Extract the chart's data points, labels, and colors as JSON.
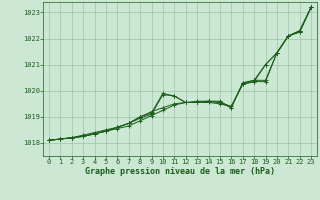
{
  "background_color": "#cce8d4",
  "plot_bg_color": "#cce8d4",
  "grid_color": "#9ec4aa",
  "line_color": "#1a5e1a",
  "title": "Graphe pression niveau de la mer (hPa)",
  "xlim": [
    -0.5,
    23.5
  ],
  "ylim": [
    1017.5,
    1023.4
  ],
  "yticks": [
    1018,
    1019,
    1020,
    1021,
    1022,
    1023
  ],
  "xticks": [
    0,
    1,
    2,
    3,
    4,
    5,
    6,
    7,
    8,
    9,
    10,
    11,
    12,
    13,
    14,
    15,
    16,
    17,
    18,
    19,
    20,
    21,
    22,
    23
  ],
  "series": [
    [
      1018.1,
      1018.15,
      1018.2,
      1018.25,
      1018.35,
      1018.45,
      1018.55,
      1018.65,
      1018.85,
      1019.05,
      1019.25,
      1019.45,
      1019.55,
      1019.55,
      1019.55,
      1019.5,
      1019.4,
      1020.25,
      1020.35,
      1021.0,
      1021.45,
      1022.1,
      1022.3,
      1023.2
    ],
    [
      1018.1,
      1018.15,
      1018.2,
      1018.25,
      1018.35,
      1018.45,
      1018.6,
      1018.75,
      1019.0,
      1019.15,
      1019.9,
      1019.8,
      1019.55,
      1019.55,
      1019.6,
      1019.55,
      1019.4,
      1020.25,
      1020.35,
      1020.35,
      1021.45,
      1022.1,
      1022.3,
      1023.2
    ],
    [
      1018.1,
      1018.15,
      1018.2,
      1018.25,
      1018.35,
      1018.45,
      1018.6,
      1018.75,
      1018.95,
      1019.1,
      1019.85,
      1019.8,
      1019.55,
      1019.6,
      1019.6,
      1019.6,
      1019.35,
      1020.3,
      1020.4,
      1020.4,
      1021.45,
      1022.1,
      1022.25,
      1023.2
    ],
    [
      1018.1,
      1018.15,
      1018.2,
      1018.3,
      1018.4,
      1018.5,
      1018.6,
      1018.75,
      1019.0,
      1019.2,
      1019.35,
      1019.5,
      1019.55,
      1019.55,
      1019.6,
      1019.55,
      1019.35,
      1020.3,
      1020.4,
      1021.0,
      1021.45,
      1022.1,
      1022.25,
      1023.2
    ]
  ]
}
